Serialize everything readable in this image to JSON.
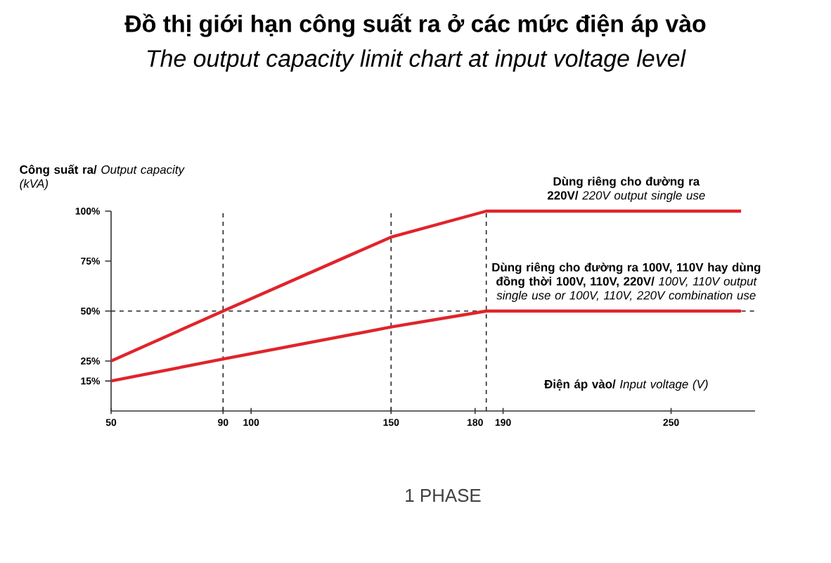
{
  "chart_data": {
    "type": "line",
    "title": "Đồ thị giới hạn công suất ra ở các mức điện áp vào",
    "subtitle": "The output capacity limit chart at input voltage level",
    "ylabel": "**Công suất ra/** *Output capacity (kVA)*",
    "xlabel": "**Điện áp vào/** *Input voltage (V)*",
    "annotations": [
      "1 PHASE"
    ],
    "series": [
      {
        "name": "**Dùng riêng cho đường ra 220V/** *220V output single use*",
        "color": "#e0242b",
        "x": [
          50,
          90,
          150,
          184,
          275
        ],
        "values": [
          25,
          50,
          87,
          100,
          100
        ]
      },
      {
        "name": "**Dùng riêng cho đường ra 100V, 110V hay dùng đồng thời 100V, 110V, 220V/** *100V, 110V output single use or 100V, 110V, 220V combination use*",
        "color": "#e0242b",
        "x": [
          50,
          90,
          150,
          184,
          275
        ],
        "values": [
          15,
          26,
          42,
          50,
          50
        ]
      }
    ],
    "xlim": [
      50,
      280
    ],
    "ylim": [
      0,
      100
    ],
    "xticks": [
      50,
      90,
      100,
      150,
      180,
      190,
      250
    ],
    "yticks": [
      {
        "value": 15,
        "label": "15%"
      },
      {
        "value": 25,
        "label": "25%"
      },
      {
        "value": 50,
        "label": "50%"
      },
      {
        "value": 75,
        "label": "75%"
      },
      {
        "value": 100,
        "label": "100%"
      }
    ],
    "ref_lines": [
      {
        "axis": "x",
        "value": 90,
        "line_style": "dashed"
      },
      {
        "axis": "x",
        "value": 150,
        "line_style": "dashed"
      },
      {
        "axis": "x",
        "value": 184,
        "line_style": "dashed"
      },
      {
        "axis": "y",
        "value": 50,
        "line_style": "dashed"
      }
    ],
    "grid": false,
    "marker": "none",
    "line_style": "solid"
  }
}
